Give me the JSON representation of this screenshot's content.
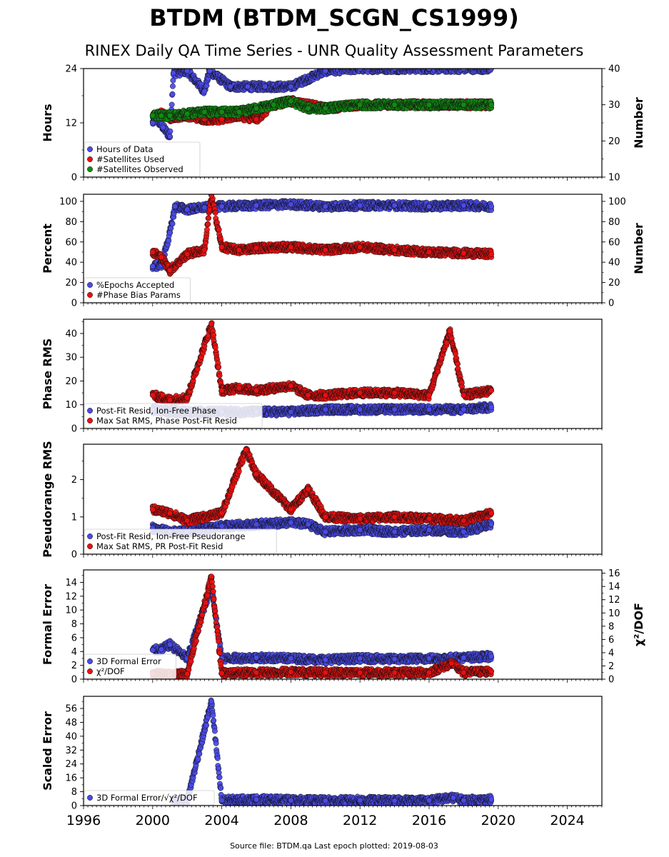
{
  "title": "BTDM (BTDM_SCGN_CS1999)",
  "subtitle": "RINEX Daily QA Time Series - UNR Quality Assessment Parameters",
  "footer": "Source file: BTDM.qa Last epoch plotted: 2019-08-03",
  "colors": {
    "blue": "#4a4ae8",
    "red": "#e81010",
    "green": "#128a12",
    "edge": "#101010"
  },
  "x_axis": {
    "range": [
      1996,
      2026
    ],
    "ticks": [
      1996,
      2000,
      2004,
      2008,
      2012,
      2016,
      2020,
      2024
    ],
    "tick_labels": [
      "1996",
      "2000",
      "2004",
      "2008",
      "2012",
      "2016",
      "2020",
      "2024"
    ]
  },
  "chart_data": [
    {
      "type": "scatter",
      "ylabel": "Hours",
      "ylim": [
        0,
        24
      ],
      "yticks": [
        0,
        12,
        24
      ],
      "ylabel_right": "Number",
      "ylim_right": [
        10,
        40
      ],
      "yticks_right": [
        10,
        20,
        30,
        40
      ],
      "legend": [
        "Hours of Data",
        "#Satellites Used",
        "#Satellites Observed"
      ],
      "legend_loc": "lower-left",
      "series": [
        {
          "name": "Hours of Data",
          "axis": "left",
          "color": "blue",
          "x": [
            2000.0,
            2000.2,
            2000.6,
            2001.0,
            2001.2,
            2002.0,
            2003.0,
            2003.3,
            2004.5,
            2005.5,
            2006.5,
            2008.0,
            2010.0,
            2012.0,
            2014.0,
            2016.0,
            2018.0,
            2019.6
          ],
          "y": [
            12,
            13,
            11,
            9,
            23,
            23.5,
            19,
            23.5,
            20,
            20,
            20,
            20,
            23.5,
            24,
            24,
            24,
            24,
            24
          ]
        },
        {
          "name": "#Satellites Used",
          "axis": "right",
          "color": "red",
          "x": [
            2000.0,
            2000.5,
            2001.0,
            2002.0,
            2003.0,
            2004.0,
            2005.0,
            2006.0,
            2007.0,
            2008.0,
            2009.0,
            2010.0,
            2012.0,
            2014.0,
            2016.0,
            2018.0,
            2019.6
          ],
          "y": [
            27,
            27.5,
            26.5,
            27,
            26,
            26,
            27,
            26,
            30,
            31,
            30,
            29,
            30,
            30,
            30,
            30,
            30
          ]
        },
        {
          "name": "#Satellites Observed",
          "axis": "right",
          "color": "green",
          "x": [
            2000.0,
            2000.5,
            2001.0,
            2002.0,
            2003.0,
            2004.0,
            2005.0,
            2006.0,
            2007.0,
            2008.0,
            2009.0,
            2010.0,
            2012.0,
            2014.0,
            2016.0,
            2018.0,
            2019.6
          ],
          "y": [
            27,
            27,
            27,
            27.5,
            28,
            28,
            28,
            29,
            30,
            31,
            29,
            29,
            30,
            30,
            30,
            30,
            30
          ]
        }
      ]
    },
    {
      "type": "scatter",
      "ylabel": "Percent",
      "ylim": [
        0,
        107
      ],
      "yticks": [
        0,
        20,
        40,
        60,
        80,
        100
      ],
      "ylabel_right": "Number",
      "ylim_right": [
        0,
        107
      ],
      "yticks_right": [
        0,
        20,
        40,
        60,
        80,
        100
      ],
      "legend": [
        "%Epochs Accepted",
        "#Phase Bias Params"
      ],
      "legend_loc": "lower-left",
      "series": [
        {
          "name": "%Epochs Accepted",
          "axis": "left",
          "color": "blue",
          "x": [
            2000.0,
            2000.5,
            2001.0,
            2001.3,
            2002.0,
            2003.0,
            2004.0,
            2006.0,
            2008.0,
            2010.0,
            2012.0,
            2014.0,
            2016.0,
            2018.0,
            2019.6
          ],
          "y": [
            36,
            37,
            69,
            95,
            92,
            94,
            95,
            96,
            97,
            95,
            96,
            96,
            95,
            96,
            95
          ]
        },
        {
          "name": "#Phase Bias Params",
          "axis": "right",
          "color": "red",
          "x": [
            2000.0,
            2000.5,
            2001.0,
            2002.0,
            2003.0,
            2003.4,
            2004.0,
            2005.0,
            2006.0,
            2008.0,
            2010.0,
            2012.0,
            2014.0,
            2016.0,
            2018.0,
            2019.6
          ],
          "y": [
            50,
            45,
            32,
            48,
            52,
            106,
            55,
            52,
            54,
            55,
            52,
            55,
            52,
            50,
            49,
            48
          ]
        }
      ]
    },
    {
      "type": "scatter",
      "ylabel": "Phase RMS",
      "ylim": [
        0,
        46
      ],
      "yticks": [
        0,
        10,
        20,
        30,
        40
      ],
      "legend": [
        "Post-Fit Resid, Ion-Free Phase",
        "Max Sat RMS, Phase Post-Fit Resid"
      ],
      "legend_loc": "lower-left",
      "series": [
        {
          "name": "Post-Fit Resid, Ion-Free Phase",
          "axis": "left",
          "color": "blue",
          "x": [
            2000.0,
            2001.0,
            2002.0,
            2004.0,
            2006.0,
            2008.0,
            2010.0,
            2012.0,
            2014.0,
            2016.0,
            2018.0,
            2019.6
          ],
          "y": [
            8,
            7,
            7,
            7,
            7,
            7,
            8,
            8,
            8,
            8,
            8,
            9
          ]
        },
        {
          "name": "Max Sat RMS, Phase Post-Fit Resid",
          "axis": "left",
          "color": "red",
          "x": [
            2000.0,
            2001.0,
            2002.0,
            2003.4,
            2004.0,
            2005.0,
            2006.0,
            2008.0,
            2009.0,
            2010.0,
            2012.0,
            2014.0,
            2016.0,
            2017.2,
            2018.0,
            2019.6
          ],
          "y": [
            14,
            12,
            13,
            44,
            16,
            17,
            16,
            18,
            14,
            14,
            15,
            15,
            14,
            41,
            14,
            16
          ]
        }
      ]
    },
    {
      "type": "scatter",
      "ylabel": "Pseudorange RMS",
      "ylim": [
        0,
        2.95
      ],
      "yticks": [
        0,
        1,
        2
      ],
      "legend": [
        "Post-Fit Resid, Ion-Free Pseudorange",
        "Max Sat RMS, PR Post-Fit Resid"
      ],
      "legend_loc": "lower-left",
      "series": [
        {
          "name": "Post-Fit Resid, Ion-Free Pseudorange",
          "axis": "left",
          "color": "blue",
          "x": [
            2000.0,
            2001.0,
            2002.0,
            2004.0,
            2006.0,
            2008.0,
            2009.0,
            2010.0,
            2012.0,
            2014.0,
            2016.0,
            2018.0,
            2019.6
          ],
          "y": [
            0.7,
            0.6,
            0.6,
            0.75,
            0.8,
            0.85,
            0.8,
            0.6,
            0.65,
            0.6,
            0.65,
            0.6,
            0.8
          ]
        },
        {
          "name": "Max Sat RMS, PR Post-Fit Resid",
          "axis": "left",
          "color": "red",
          "x": [
            2000.0,
            2001.0,
            2002.0,
            2004.0,
            2005.4,
            2006.0,
            2008.0,
            2009.0,
            2010.0,
            2012.0,
            2014.0,
            2016.0,
            2018.0,
            2019.6
          ],
          "y": [
            1.2,
            1.1,
            0.9,
            1.1,
            2.8,
            2.15,
            1.2,
            1.75,
            1.0,
            0.95,
            1.0,
            0.95,
            0.9,
            1.1
          ]
        }
      ]
    },
    {
      "type": "scatter",
      "ylabel": "Formal Error",
      "ylim": [
        0,
        15.8
      ],
      "yticks": [
        0,
        2,
        4,
        6,
        8,
        10,
        12,
        14
      ],
      "ylabel_right": "χ²/DOF",
      "ylim_right": [
        0,
        16.5
      ],
      "yticks_right": [
        0,
        2,
        4,
        6,
        8,
        10,
        12,
        14,
        16
      ],
      "legend": [
        "3D Formal Error",
        "χ²/DOF"
      ],
      "legend_loc": "lower-left",
      "series": [
        {
          "name": "3D Formal Error",
          "axis": "left",
          "color": "blue",
          "x": [
            2000.0,
            2000.5,
            2001.0,
            2002.0,
            2003.4,
            2004.0,
            2006.0,
            2008.0,
            2010.0,
            2012.0,
            2014.0,
            2016.0,
            2018.0,
            2019.6
          ],
          "y": [
            4.2,
            4.3,
            5.0,
            3.0,
            13.5,
            3.0,
            3.1,
            3.0,
            2.8,
            3.0,
            2.9,
            3.0,
            3.1,
            3.3
          ]
        },
        {
          "name": "χ²/DOF",
          "axis": "right",
          "color": "red",
          "x": [
            2000.0,
            2001.0,
            2002.0,
            2003.4,
            2004.0,
            2006.0,
            2008.0,
            2010.0,
            2012.0,
            2014.0,
            2016.0,
            2017.3,
            2018.0,
            2019.6
          ],
          "y": [
            0.8,
            0.6,
            0.8,
            15.5,
            0.9,
            1.0,
            1.1,
            1.0,
            1.0,
            1.0,
            1.0,
            2.4,
            1.0,
            1.2
          ]
        }
      ]
    },
    {
      "type": "scatter",
      "ylabel": "Scaled Error",
      "ylim": [
        0,
        63
      ],
      "yticks": [
        0,
        8,
        16,
        24,
        32,
        40,
        48,
        56
      ],
      "legend": [
        "3D Formal Error/√χ²/DOF"
      ],
      "legend_loc": "lower-left",
      "series": [
        {
          "name": "3D Formal Error/√χ²/DOF",
          "axis": "left",
          "color": "blue",
          "x": [
            2001.2,
            2002.0,
            2003.4,
            2004.0,
            2006.0,
            2008.0,
            2010.0,
            2012.0,
            2014.0,
            2016.0,
            2017.4,
            2018.0,
            2019.6
          ],
          "y": [
            2.5,
            3.0,
            60,
            3.0,
            3.5,
            3.0,
            2.8,
            3.0,
            2.8,
            3.0,
            4.5,
            3.0,
            3.5
          ]
        }
      ]
    }
  ]
}
